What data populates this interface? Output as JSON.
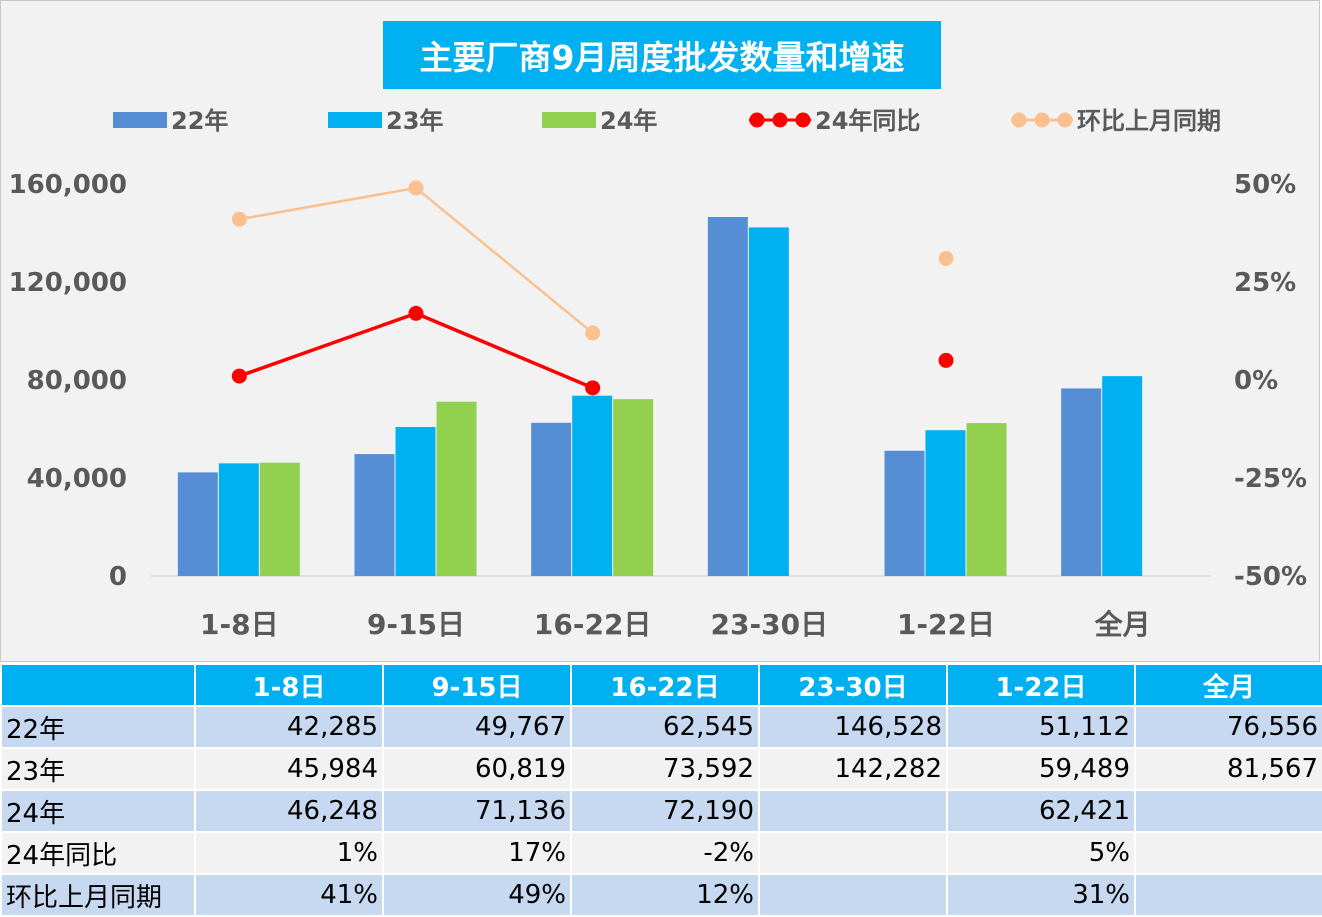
{
  "chart_data": {
    "type": "bar",
    "title": "主要厂商9月周度批发数量和增速",
    "categories": [
      "1-8日",
      "9-15日",
      "16-22日",
      "23-30日",
      "1-22日",
      "全月"
    ],
    "series": [
      {
        "name": "22年",
        "type": "bar",
        "axis": "left",
        "color": "#558ed5",
        "values": [
          42285,
          49767,
          62545,
          146528,
          51112,
          76556
        ]
      },
      {
        "name": "23年",
        "type": "bar",
        "axis": "left",
        "color": "#00b0f0",
        "values": [
          45984,
          60819,
          73592,
          142282,
          59489,
          81567
        ]
      },
      {
        "name": "24年",
        "type": "bar",
        "axis": "left",
        "color": "#92d050",
        "values": [
          46248,
          71136,
          72190,
          null,
          62421,
          null
        ]
      },
      {
        "name": "24年同比",
        "type": "line",
        "axis": "right",
        "color": "#ff0000",
        "values": [
          0.01,
          0.17,
          -0.02,
          null,
          0.05,
          null
        ]
      },
      {
        "name": "环比上月同期",
        "type": "line",
        "axis": "right",
        "color": "#fac090",
        "values": [
          0.41,
          0.49,
          0.12,
          null,
          0.31,
          null
        ]
      }
    ],
    "y_left": {
      "min": 0,
      "max": 160000,
      "ticks": [
        "0",
        "40,000",
        "80,000",
        "120,000",
        "160,000"
      ]
    },
    "y_right": {
      "min": -0.5,
      "max": 0.5,
      "ticks": [
        "-50%",
        "-25%",
        "0%",
        "25%",
        "50%"
      ]
    },
    "legend_position": "top",
    "grid": false
  },
  "table": {
    "headers": [
      "",
      "1-8日",
      "9-15日",
      "16-22日",
      "23-30日",
      "1-22日",
      "全月"
    ],
    "rows": [
      {
        "label": "22年",
        "cells": [
          "42,285",
          "49,767",
          "62,545",
          "146,528",
          "51,112",
          "76,556"
        ]
      },
      {
        "label": "23年",
        "cells": [
          "45,984",
          "60,819",
          "73,592",
          "142,282",
          "59,489",
          "81,567"
        ]
      },
      {
        "label": "24年",
        "cells": [
          "46,248",
          "71,136",
          "72,190",
          "",
          "62,421",
          ""
        ]
      },
      {
        "label": "24年同比",
        "cells": [
          "1%",
          "17%",
          "-2%",
          "",
          "5%",
          ""
        ]
      },
      {
        "label": "环比上月同期",
        "cells": [
          "41%",
          "49%",
          "12%",
          "",
          "31%",
          ""
        ]
      }
    ]
  }
}
